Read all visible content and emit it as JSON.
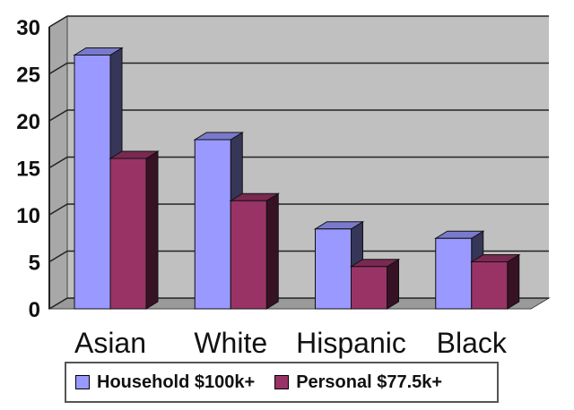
{
  "chart_data": {
    "type": "bar",
    "categories": [
      "Asian",
      "White",
      "Hispanic",
      "Black"
    ],
    "series": [
      {
        "name": "Household $100k+",
        "values": [
          27,
          18,
          8.5,
          7.5
        ],
        "color": "#9999ff"
      },
      {
        "name": "Personal $77.5k+",
        "values": [
          16,
          11.5,
          4.5,
          5
        ],
        "color": "#993366"
      }
    ],
    "ylim": [
      0,
      30
    ],
    "yticks": [
      "0",
      "5",
      "10",
      "15",
      "20",
      "25",
      "30"
    ],
    "grid": true,
    "legend_position": "bottom",
    "plot_background": "#c0c0c0",
    "title": "",
    "xlabel": "",
    "ylabel": ""
  }
}
